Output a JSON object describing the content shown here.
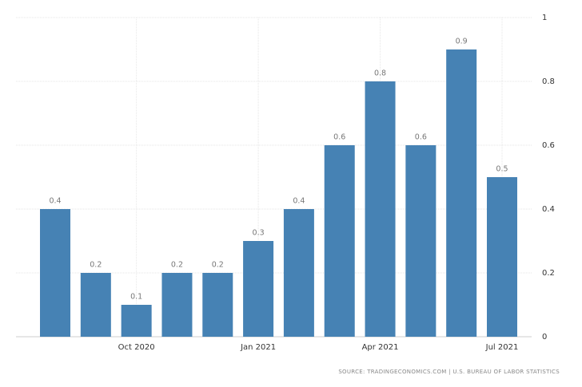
{
  "chart_data": {
    "type": "bar",
    "categories": [
      null,
      null,
      "Oct 2020",
      null,
      null,
      "Jan 2021",
      null,
      null,
      "Apr 2021",
      null,
      null,
      "Jul 2021"
    ],
    "values": [
      0.4,
      0.2,
      0.1,
      0.2,
      0.2,
      0.3,
      0.4,
      0.6,
      0.8,
      0.6,
      0.9,
      0.5
    ],
    "color": "#4682b4",
    "ylim": [
      0,
      1
    ],
    "yticks": [
      0,
      0.2,
      0.4,
      0.6,
      0.8,
      1
    ],
    "grid": true,
    "source": "SOURCE: TRADINGECONOMICS.COM | U.S. BUREAU OF LABOR STATISTICS"
  }
}
